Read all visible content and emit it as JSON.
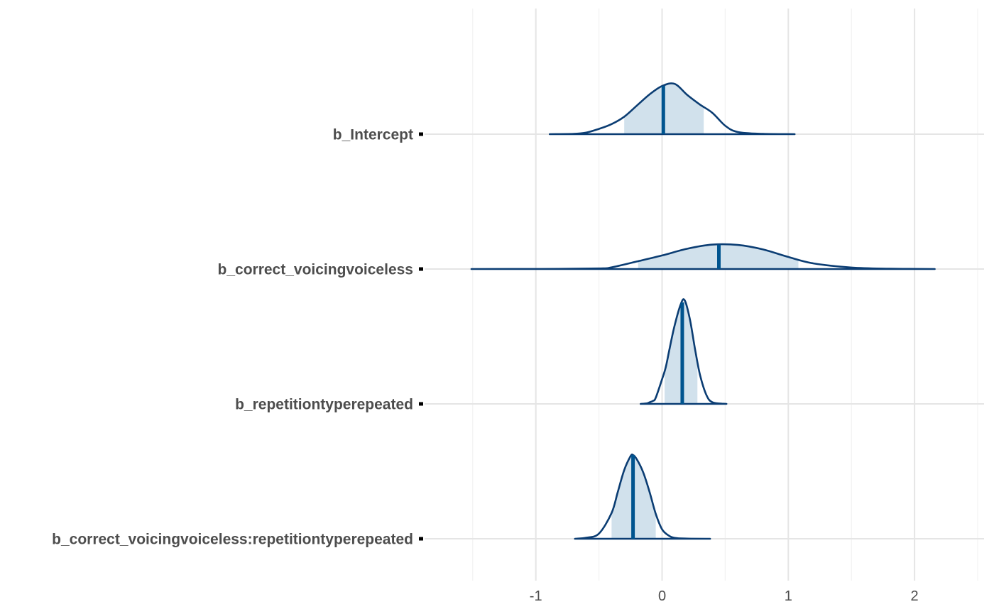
{
  "chart_data": {
    "type": "area",
    "subtype": "posterior-density-ridges",
    "title": "",
    "xlabel": "",
    "ylabel": "",
    "xlim": [
      -1.5,
      2.5
    ],
    "x_ticks": [
      -1,
      0,
      1,
      2
    ],
    "x_tick_labels": [
      "-1",
      "0",
      "1",
      "2"
    ],
    "grid": true,
    "legend": "none",
    "colors": {
      "outline": "#0b3d73",
      "fill": "#d1e1ec",
      "median_line": "#00548f",
      "grid_major": "#e5e5e5",
      "grid_minor": "#f2f2f2",
      "tick_mark": "#000000",
      "label": "#4d4d4d"
    },
    "series": [
      {
        "name": "b_Intercept",
        "median": 0.01,
        "interval": [
          -0.3,
          0.33
        ],
        "density": [
          [
            -0.89,
            0
          ],
          [
            -0.7,
            0.005
          ],
          [
            -0.6,
            0.03
          ],
          [
            -0.5,
            0.1
          ],
          [
            -0.4,
            0.19
          ],
          [
            -0.3,
            0.33
          ],
          [
            -0.2,
            0.54
          ],
          [
            -0.1,
            0.75
          ],
          [
            0.0,
            0.91
          ],
          [
            0.1,
            0.95
          ],
          [
            0.2,
            0.74
          ],
          [
            0.3,
            0.56
          ],
          [
            0.4,
            0.4
          ],
          [
            0.5,
            0.16
          ],
          [
            0.6,
            0.04
          ],
          [
            0.8,
            0.005
          ],
          [
            1.05,
            0
          ]
        ]
      },
      {
        "name": "b_correct_voicingvoiceless",
        "median": 0.45,
        "interval": [
          -0.19,
          1.08
        ],
        "density": [
          [
            -1.51,
            0
          ],
          [
            -1.0,
            0.002
          ],
          [
            -0.5,
            0.015
          ],
          [
            -0.4,
            0.045
          ],
          [
            -0.2,
            0.2
          ],
          [
            0.0,
            0.36
          ],
          [
            0.2,
            0.54
          ],
          [
            0.4,
            0.65
          ],
          [
            0.6,
            0.64
          ],
          [
            0.8,
            0.52
          ],
          [
            1.0,
            0.32
          ],
          [
            1.2,
            0.15
          ],
          [
            1.5,
            0.04
          ],
          [
            1.8,
            0.008
          ],
          [
            2.16,
            0
          ]
        ]
      },
      {
        "name": "b_repetitiontyperepeated",
        "median": 0.16,
        "interval": [
          0.02,
          0.28
        ],
        "density": [
          [
            -0.17,
            0
          ],
          [
            -0.12,
            0.015
          ],
          [
            -0.1,
            0.05
          ],
          [
            -0.07,
            0.1
          ],
          [
            -0.05,
            0.2
          ],
          [
            0.0,
            0.8
          ],
          [
            0.03,
            1.2
          ],
          [
            0.06,
            1.8
          ],
          [
            0.1,
            2.55
          ],
          [
            0.15,
            3.25
          ],
          [
            0.18,
            3.35
          ],
          [
            0.22,
            2.75
          ],
          [
            0.26,
            1.8
          ],
          [
            0.3,
            0.95
          ],
          [
            0.35,
            0.3
          ],
          [
            0.4,
            0.05
          ],
          [
            0.51,
            0
          ]
        ]
      },
      {
        "name": "b_correct_voicingvoiceless:repetitiontyperepeated",
        "median": -0.23,
        "interval": [
          -0.4,
          -0.05
        ],
        "density": [
          [
            -0.69,
            0
          ],
          [
            -0.6,
            0.025
          ],
          [
            -0.5,
            0.12
          ],
          [
            -0.4,
            0.6
          ],
          [
            -0.35,
            1.1
          ],
          [
            -0.3,
            1.6
          ],
          [
            -0.25,
            1.92
          ],
          [
            -0.23,
            1.95
          ],
          [
            -0.2,
            1.85
          ],
          [
            -0.15,
            1.55
          ],
          [
            -0.1,
            1.1
          ],
          [
            -0.05,
            0.58
          ],
          [
            0.0,
            0.22
          ],
          [
            0.05,
            0.08
          ],
          [
            0.1,
            0.02
          ],
          [
            0.2,
            0.003
          ],
          [
            0.38,
            0
          ]
        ]
      }
    ]
  }
}
